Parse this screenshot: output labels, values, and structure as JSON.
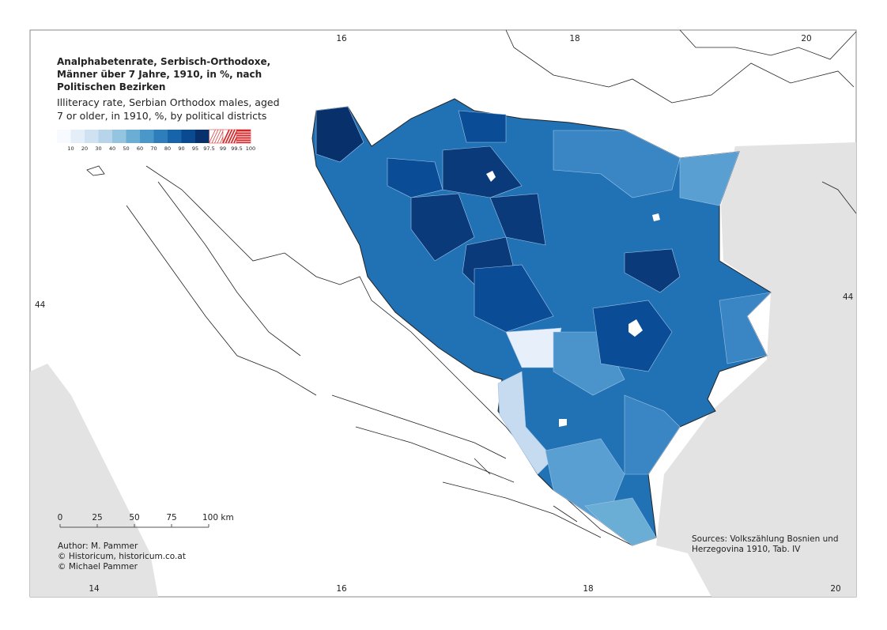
{
  "title_de": [
    "Analphabetenrate, Serbisch-Orthodoxe,",
    "Männer über 7 Jahre, 1910, in %, nach",
    "Politischen Bezirken"
  ],
  "title_en": [
    "Illiteracy rate, Serbian Orthodox males, aged",
    "7 or older, in 1910, %, by political districts"
  ],
  "legend": [
    "10",
    "20",
    "30",
    "40",
    "50",
    "60",
    "70",
    "80",
    "90",
    "95",
    "97.5",
    "99",
    "99.5",
    "100"
  ],
  "scale": [
    "0",
    "25",
    "50",
    "75",
    "100 km"
  ],
  "credits": [
    "Author: M. Pammer",
    "© Historicum, historicum.co.at",
    "© Michael Pammer"
  ],
  "sources": [
    "Sources: Volkszählung Bosnien und",
    "Herzegovina 1910, Tab. IV"
  ],
  "grid_top": [
    "16",
    "18",
    "20"
  ],
  "grid_bottom": [
    "14",
    "16",
    "18",
    "20"
  ],
  "grid_left": "44",
  "grid_right": "44"
}
